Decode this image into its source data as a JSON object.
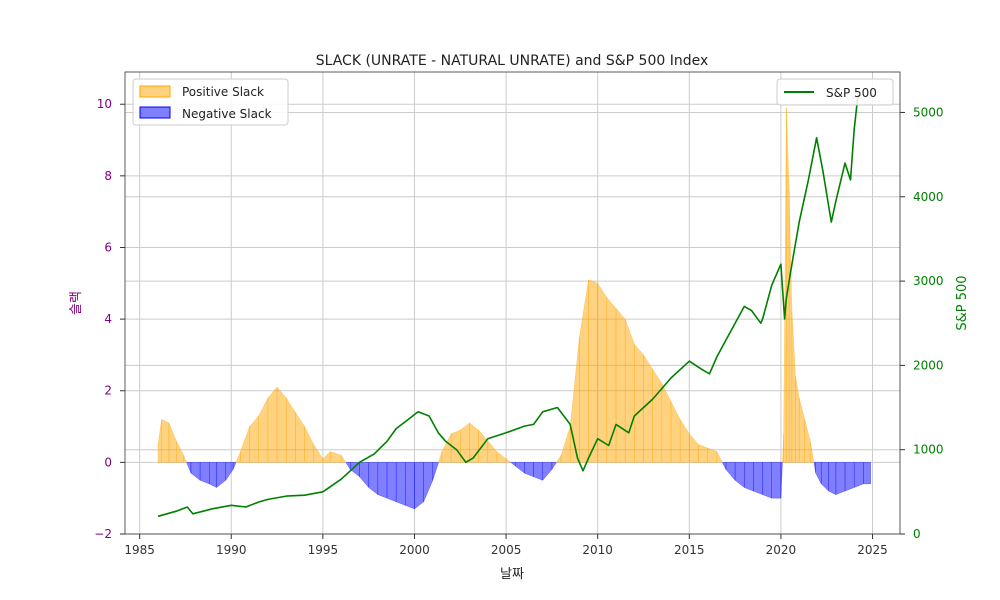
{
  "colors": {
    "positive_fill": "#ffa500",
    "negative_fill": "#0000ff",
    "sp500_line": "#008000",
    "left_axis": "#800080",
    "right_axis": "#008000",
    "grid": "#cccccc"
  },
  "chart_data": {
    "type": "area",
    "title": "SLACK (UNRATE - NATURAL UNRATE) and S&P 500 Index",
    "xlabel": "날짜",
    "ylabel": "슬랙",
    "ylabel_right": "S&P 500",
    "xlim": [
      1984.2,
      2026.5
    ],
    "ylim": [
      -2,
      10.9
    ],
    "ylim_right": [
      0,
      5480
    ],
    "x_ticks": [
      1985,
      1990,
      1995,
      2000,
      2005,
      2010,
      2015,
      2020,
      2025
    ],
    "x_tick_labels": [
      "1985",
      "1990",
      "1995",
      "2000",
      "2005",
      "2010",
      "2015",
      "2020",
      "2025"
    ],
    "y_ticks": [
      -2,
      0,
      2,
      4,
      6,
      8,
      10
    ],
    "y_tick_labels": [
      "−2",
      "0",
      "2",
      "4",
      "6",
      "8",
      "10"
    ],
    "y_ticks_right": [
      0,
      1000,
      2000,
      3000,
      4000,
      5000
    ],
    "y_tick_labels_right": [
      "0",
      "1000",
      "2000",
      "3000",
      "4000",
      "5000"
    ],
    "grid": true,
    "legend_left": {
      "placement": "upper-left",
      "entries": [
        {
          "label": "Positive Slack",
          "color": "#ffa500"
        },
        {
          "label": "Negative Slack",
          "color": "#0000ff"
        }
      ]
    },
    "legend_right": {
      "placement": "upper-right",
      "entries": [
        {
          "label": "S&P 500",
          "color": "#008000"
        }
      ]
    },
    "slack": {
      "x": [
        1986.0,
        1986.2,
        1986.6,
        1987.0,
        1987.4,
        1987.8,
        1988.3,
        1988.8,
        1989.2,
        1989.7,
        1990.1,
        1990.5,
        1991.0,
        1991.5,
        1992.0,
        1992.5,
        1993.0,
        1993.5,
        1994.0,
        1994.5,
        1995.0,
        1995.4,
        1996.0,
        1996.5,
        1997.0,
        1997.5,
        1998.0,
        1998.5,
        1999.0,
        1999.5,
        2000.0,
        2000.5,
        2001.0,
        2001.5,
        2002.0,
        2002.5,
        2003.0,
        2003.5,
        2004.0,
        2004.5,
        2005.0,
        2005.5,
        2006.0,
        2006.5,
        2007.0,
        2007.5,
        2008.0,
        2008.5,
        2009.0,
        2009.5,
        2010.0,
        2010.5,
        2011.0,
        2011.5,
        2012.0,
        2012.5,
        2013.0,
        2013.5,
        2014.0,
        2014.5,
        2015.0,
        2015.5,
        2016.0,
        2016.5,
        2017.0,
        2017.5,
        2018.0,
        2018.5,
        2019.0,
        2019.5,
        2020.0,
        2020.15,
        2020.3,
        2020.45,
        2020.6,
        2020.8,
        2021.0,
        2021.3,
        2021.6,
        2021.9,
        2022.2,
        2022.6,
        2023.0,
        2023.5,
        2024.0,
        2024.5,
        2024.9
      ],
      "y": [
        0.5,
        1.2,
        1.1,
        0.6,
        0.2,
        -0.3,
        -0.5,
        -0.6,
        -0.7,
        -0.5,
        -0.2,
        0.3,
        1.0,
        1.3,
        1.8,
        2.1,
        1.8,
        1.4,
        1.0,
        0.5,
        0.1,
        0.3,
        0.2,
        -0.2,
        -0.4,
        -0.7,
        -0.9,
        -1.0,
        -1.1,
        -1.2,
        -1.3,
        -1.1,
        -0.5,
        0.3,
        0.8,
        0.9,
        1.1,
        0.9,
        0.6,
        0.3,
        0.1,
        -0.1,
        -0.3,
        -0.4,
        -0.5,
        -0.2,
        0.2,
        1.0,
        3.5,
        5.1,
        5.0,
        4.6,
        4.3,
        4.0,
        3.3,
        3.0,
        2.6,
        2.2,
        1.7,
        1.2,
        0.8,
        0.5,
        0.4,
        0.3,
        -0.2,
        -0.5,
        -0.7,
        -0.8,
        -0.9,
        -1.0,
        -1.0,
        0.8,
        9.9,
        7.6,
        4.2,
        2.4,
        1.8,
        1.2,
        0.6,
        -0.3,
        -0.6,
        -0.8,
        -0.9,
        -0.8,
        -0.7,
        -0.6,
        -0.6
      ]
    },
    "sp500": {
      "x": [
        1986.0,
        1987.0,
        1987.6,
        1987.9,
        1989.0,
        1990.0,
        1990.8,
        1991.5,
        1992.0,
        1993.0,
        1994.0,
        1995.0,
        1996.0,
        1997.0,
        1997.8,
        1998.5,
        1999.0,
        1999.6,
        2000.2,
        2000.8,
        2001.3,
        2001.7,
        2002.3,
        2002.8,
        2003.2,
        2004.0,
        2005.0,
        2006.0,
        2006.5,
        2007.0,
        2007.8,
        2008.5,
        2008.9,
        2009.2,
        2009.5,
        2010.0,
        2010.6,
        2011.0,
        2011.7,
        2012.0,
        2013.0,
        2014.0,
        2015.0,
        2015.7,
        2016.1,
        2016.5,
        2017.0,
        2018.0,
        2018.4,
        2018.9,
        2019.0,
        2019.5,
        2020.0,
        2020.2,
        2020.3,
        2020.6,
        2021.0,
        2021.5,
        2021.95,
        2022.3,
        2022.75,
        2023.0,
        2023.5,
        2023.8,
        2024.0,
        2024.2
      ],
      "y": [
        210,
        270,
        320,
        240,
        300,
        340,
        320,
        380,
        410,
        450,
        460,
        500,
        650,
        850,
        950,
        1100,
        1250,
        1350,
        1450,
        1400,
        1200,
        1100,
        1000,
        850,
        900,
        1130,
        1200,
        1280,
        1300,
        1450,
        1500,
        1300,
        900,
        750,
        900,
        1130,
        1050,
        1300,
        1200,
        1400,
        1600,
        1850,
        2050,
        1950,
        1900,
        2100,
        2300,
        2700,
        2650,
        2500,
        2550,
        2950,
        3200,
        2550,
        2800,
        3200,
        3700,
        4200,
        4700,
        4300,
        3700,
        3950,
        4400,
        4200,
        4800,
        5200
      ]
    }
  }
}
